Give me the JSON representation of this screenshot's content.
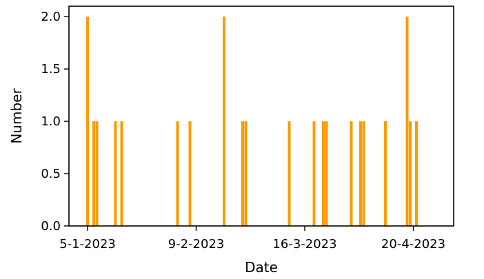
{
  "chart_data": {
    "type": "bar",
    "title": "",
    "xlabel": "Date",
    "ylabel": "Number",
    "xlim": [
      "2022-12-30",
      "2023-05-03"
    ],
    "ylim": [
      0,
      2.1
    ],
    "grid": false,
    "bar_color": "#ff9900",
    "x": [
      "2023-01-05",
      "2023-01-07",
      "2023-01-08",
      "2023-01-14",
      "2023-01-16",
      "2023-02-03",
      "2023-02-07",
      "2023-02-18",
      "2023-02-24",
      "2023-02-25",
      "2023-03-11",
      "2023-03-19",
      "2023-03-22",
      "2023-03-23",
      "2023-03-31",
      "2023-04-03",
      "2023-04-04",
      "2023-04-11",
      "2023-04-18",
      "2023-04-19",
      "2023-04-21"
    ],
    "values": [
      2,
      1,
      1,
      1,
      1,
      1,
      1,
      2,
      1,
      1,
      1,
      1,
      1,
      1,
      1,
      1,
      1,
      1,
      2,
      1,
      1
    ],
    "x_ticks": [
      {
        "date": "2023-01-05",
        "label": "5-1-2023"
      },
      {
        "date": "2023-02-09",
        "label": "9-2-2023"
      },
      {
        "date": "2023-03-16",
        "label": "16-3-2023"
      },
      {
        "date": "2023-04-20",
        "label": "20-4-2023"
      }
    ],
    "y_ticks": [
      {
        "value": 0,
        "label": "0.0"
      },
      {
        "value": 0.5,
        "label": "0.5"
      },
      {
        "value": 1,
        "label": "1.0"
      },
      {
        "value": 1.5,
        "label": "1.5"
      },
      {
        "value": 2,
        "label": "2.0"
      }
    ]
  }
}
